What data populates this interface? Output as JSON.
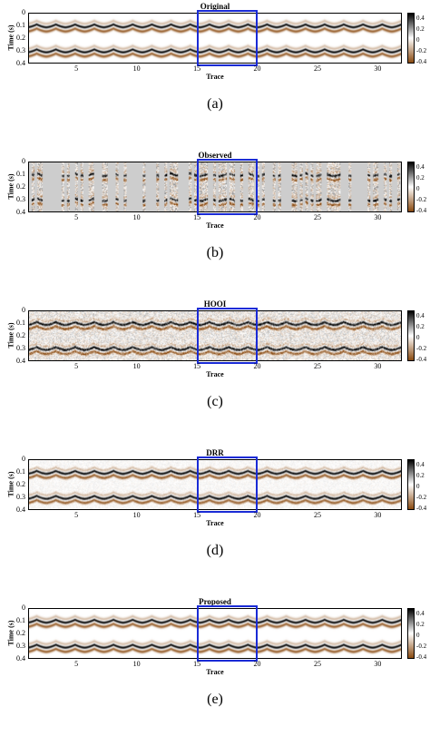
{
  "panels": [
    {
      "title": "Original",
      "caption": "(a)",
      "noise": "none"
    },
    {
      "title": "Observed",
      "caption": "(b)",
      "noise": "missing"
    },
    {
      "title": "HOOI",
      "caption": "(c)",
      "noise": "heavy"
    },
    {
      "title": "DRR",
      "caption": "(d)",
      "noise": "light"
    },
    {
      "title": "Proposed",
      "caption": "(e)",
      "noise": "none"
    }
  ],
  "axes": {
    "ylabel": "Time (s)",
    "xlabel": "Trace",
    "yticks": [
      "0",
      "0.1",
      "0.2",
      "0.3",
      "0.4"
    ],
    "xticks": [
      "5",
      "10",
      "15",
      "20",
      "25",
      "30"
    ],
    "xrange": [
      1,
      32
    ],
    "yrange": [
      0,
      0.4
    ]
  },
  "colorbar": {
    "ticks": [
      "0.4",
      "0.2",
      "0",
      "-0.2",
      "-0.4"
    ],
    "colors": {
      "positive": "#000000",
      "zero": "#ffffff",
      "negative": "#8a4a10"
    }
  },
  "highlight": {
    "from": 15,
    "to": 20,
    "color": "#1a2bd6"
  }
}
